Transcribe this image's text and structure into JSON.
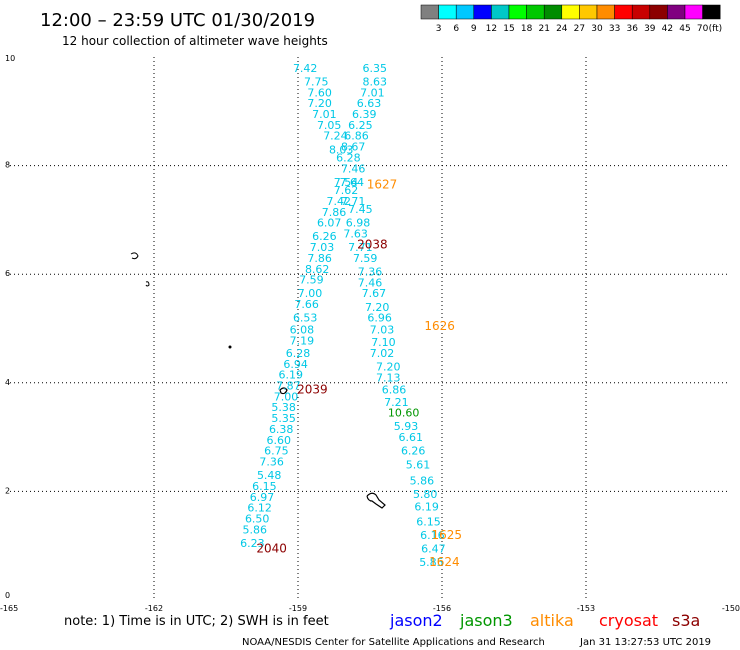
{
  "chart_data": {
    "type": "scatter",
    "title": "12:00 – 23:59 UTC 01/30/2019",
    "subtitle": "12 hour collection of altimeter wave heights",
    "xlabel": "",
    "ylabel": "",
    "xlim": [
      -165,
      -150
    ],
    "ylim": [
      0,
      10
    ],
    "x_ticks": [
      "-165",
      "-162",
      "-159",
      "-156",
      "-153",
      "-150"
    ],
    "y_ticks": [
      "0",
      "2",
      "4",
      "6",
      "8",
      "10"
    ],
    "grid": true,
    "colorbar": {
      "labels": [
        "3",
        "6",
        "9",
        "12",
        "15",
        "18",
        "21",
        "24",
        "27",
        "30",
        "33",
        "36",
        "39",
        "42",
        "45",
        "70"
      ],
      "unit": "(ft)",
      "colors": [
        "#808080",
        "#00ffff",
        "#00c8ff",
        "#0000ff",
        "#00c8c8",
        "#00ff00",
        "#00c800",
        "#008c00",
        "#ffff00",
        "#ffc800",
        "#ff8c00",
        "#ff0000",
        "#c80000",
        "#8c0000",
        "#800080",
        "#ff00ff",
        "#000000"
      ]
    },
    "series": [
      {
        "name": "jason2",
        "color": "#00c8e6",
        "points": [
          {
            "x": -158.85,
            "y": 9.8,
            "v": "7.42"
          },
          {
            "x": -158.62,
            "y": 9.55,
            "v": "7.75"
          },
          {
            "x": -158.55,
            "y": 9.35,
            "v": "7.60"
          },
          {
            "x": -158.55,
            "y": 9.15,
            "v": "7.20"
          },
          {
            "x": -158.45,
            "y": 8.95,
            "v": "7.01"
          },
          {
            "x": -158.35,
            "y": 8.75,
            "v": "7.05"
          },
          {
            "x": -158.22,
            "y": 8.55,
            "v": "7.24"
          },
          {
            "x": -158.1,
            "y": 8.3,
            "v": "8.03"
          },
          {
            "x": -157.95,
            "y": 8.15,
            "v": "6.28"
          },
          {
            "x": -157.85,
            "y": 7.95,
            "v": "7.46"
          },
          {
            "x": -158.0,
            "y": 7.7,
            "v": "7.54"
          },
          {
            "x": -158.0,
            "y": 7.55,
            "v": "7.62"
          },
          {
            "x": -158.15,
            "y": 7.35,
            "v": "7.42"
          },
          {
            "x": -158.25,
            "y": 7.15,
            "v": "7.86"
          },
          {
            "x": -158.35,
            "y": 6.95,
            "v": "6.07"
          },
          {
            "x": -158.45,
            "y": 6.7,
            "v": "6.26"
          },
          {
            "x": -158.5,
            "y": 6.5,
            "v": "7.03"
          },
          {
            "x": -158.55,
            "y": 6.3,
            "v": "7.86"
          },
          {
            "x": -158.6,
            "y": 6.1,
            "v": "8.62"
          },
          {
            "x": -158.72,
            "y": 5.9,
            "v": "7.59"
          },
          {
            "x": -158.75,
            "y": 5.65,
            "v": "7.00"
          },
          {
            "x": -158.82,
            "y": 5.45,
            "v": "7.66"
          },
          {
            "x": -158.85,
            "y": 5.2,
            "v": "6.53"
          },
          {
            "x": -158.92,
            "y": 4.98,
            "v": "6.08"
          },
          {
            "x": -158.92,
            "y": 4.78,
            "v": "7.19"
          },
          {
            "x": -159.0,
            "y": 4.55,
            "v": "6.28"
          },
          {
            "x": -159.05,
            "y": 4.35,
            "v": "6.94"
          },
          {
            "x": -159.15,
            "y": 4.15,
            "v": "6.19"
          },
          {
            "x": -159.2,
            "y": 3.95,
            "v": "7.87"
          },
          {
            "x": -159.25,
            "y": 3.75,
            "v": "7.00"
          },
          {
            "x": -159.3,
            "y": 3.55,
            "v": "5.38"
          },
          {
            "x": -159.3,
            "y": 3.35,
            "v": "5.35"
          },
          {
            "x": -159.35,
            "y": 3.15,
            "v": "6.38"
          },
          {
            "x": -159.4,
            "y": 2.95,
            "v": "6.60"
          },
          {
            "x": -159.45,
            "y": 2.75,
            "v": "6.75"
          },
          {
            "x": -159.55,
            "y": 2.55,
            "v": "7.36"
          },
          {
            "x": -159.6,
            "y": 2.3,
            "v": "5.48"
          },
          {
            "x": -159.7,
            "y": 2.1,
            "v": "6.15"
          },
          {
            "x": -159.75,
            "y": 1.9,
            "v": "6.97"
          },
          {
            "x": -159.8,
            "y": 1.7,
            "v": "6.12"
          },
          {
            "x": -159.85,
            "y": 1.5,
            "v": "6.50"
          },
          {
            "x": -159.9,
            "y": 1.3,
            "v": "5.86"
          },
          {
            "x": -159.95,
            "y": 1.05,
            "v": "6.23"
          }
        ]
      },
      {
        "name": "jason3",
        "color": "#00c8e6",
        "points": [
          {
            "x": -157.4,
            "y": 9.8,
            "v": "6.35"
          },
          {
            "x": -157.4,
            "y": 9.55,
            "v": "8.63"
          },
          {
            "x": -157.45,
            "y": 9.35,
            "v": "7.01"
          },
          {
            "x": -157.52,
            "y": 9.15,
            "v": "6.63"
          },
          {
            "x": -157.62,
            "y": 8.95,
            "v": "6.39"
          },
          {
            "x": -157.7,
            "y": 8.75,
            "v": "6.25"
          },
          {
            "x": -157.78,
            "y": 8.55,
            "v": "6.86"
          },
          {
            "x": -157.85,
            "y": 8.35,
            "v": "8.67"
          },
          {
            "x": -157.88,
            "y": 7.7,
            "v": "7.64"
          },
          {
            "x": -157.85,
            "y": 7.35,
            "v": "7.71"
          },
          {
            "x": -157.7,
            "y": 7.2,
            "v": "7.45"
          },
          {
            "x": -157.75,
            "y": 6.95,
            "v": "6.98"
          },
          {
            "x": -157.8,
            "y": 6.75,
            "v": "7.63"
          },
          {
            "x": -157.7,
            "y": 6.5,
            "v": "7.71"
          },
          {
            "x": -157.6,
            "y": 6.3,
            "v": "7.59"
          },
          {
            "x": -157.5,
            "y": 6.05,
            "v": "7.36"
          },
          {
            "x": -157.5,
            "y": 5.85,
            "v": "7.46"
          },
          {
            "x": -157.42,
            "y": 5.65,
            "v": "7.67"
          },
          {
            "x": -157.35,
            "y": 5.4,
            "v": "7.20"
          },
          {
            "x": -157.3,
            "y": 5.2,
            "v": "6.96"
          },
          {
            "x": -157.25,
            "y": 4.98,
            "v": "7.03"
          },
          {
            "x": -157.22,
            "y": 4.75,
            "v": "7.10"
          },
          {
            "x": -157.25,
            "y": 4.55,
            "v": "7.02"
          },
          {
            "x": -157.12,
            "y": 4.3,
            "v": "7.20"
          },
          {
            "x": -157.12,
            "y": 4.1,
            "v": "7.13"
          },
          {
            "x": -157.0,
            "y": 3.88,
            "v": "6.86"
          },
          {
            "x": -156.95,
            "y": 3.65,
            "v": "7.21"
          },
          {
            "x": -156.75,
            "y": 3.2,
            "v": "5.93"
          },
          {
            "x": -156.65,
            "y": 3.0,
            "v": "6.61"
          },
          {
            "x": -156.6,
            "y": 2.75,
            "v": "6.26"
          },
          {
            "x": -156.5,
            "y": 2.5,
            "v": "5.61"
          },
          {
            "x": -156.42,
            "y": 2.2,
            "v": "5.86"
          },
          {
            "x": -156.35,
            "y": 1.95,
            "v": "5.80"
          },
          {
            "x": -156.32,
            "y": 1.72,
            "v": "6.19"
          },
          {
            "x": -156.28,
            "y": 1.45,
            "v": "6.15"
          },
          {
            "x": -156.2,
            "y": 1.2,
            "v": "6.16"
          },
          {
            "x": -156.18,
            "y": 0.95,
            "v": "6.47"
          },
          {
            "x": -156.22,
            "y": 0.7,
            "v": "5.85"
          }
        ]
      },
      {
        "name": "altika",
        "color": "#009600",
        "points": [
          {
            "x": -156.8,
            "y": 3.45,
            "v": "10.60"
          }
        ]
      },
      {
        "name": "cryosat",
        "color": "#8c0000",
        "points": [
          {
            "x": -157.45,
            "y": 6.55,
            "v": "2038"
          },
          {
            "x": -158.7,
            "y": 3.88,
            "v": "2039"
          },
          {
            "x": -159.55,
            "y": 0.95,
            "v": "2040"
          }
        ]
      },
      {
        "name": "s3a",
        "color": "#ff8c00",
        "points": [
          {
            "x": -157.25,
            "y": 7.65,
            "v": "1627"
          },
          {
            "x": -156.05,
            "y": 5.05,
            "v": "1626"
          },
          {
            "x": -155.9,
            "y": 1.2,
            "v": "1625"
          },
          {
            "x": -155.95,
            "y": 0.7,
            "v": "1624"
          }
        ]
      }
    ],
    "note": "note:  1) Time is in UTC;  2) SWH is in feet",
    "legend": [
      {
        "label": "jason2",
        "color": "#0000ff"
      },
      {
        "label": "jason3",
        "color": "#009600"
      },
      {
        "label": "altika",
        "color": "#ff8c00"
      },
      {
        "label": "cryosat",
        "color": "#ff0000"
      },
      {
        "label": "s3a",
        "color": "#8c0000"
      }
    ],
    "credit": "NOAA/NESDIS Center for Satellite Applications and Research",
    "timestamp": "Jan 31 13:27:53 UTC 2019"
  }
}
